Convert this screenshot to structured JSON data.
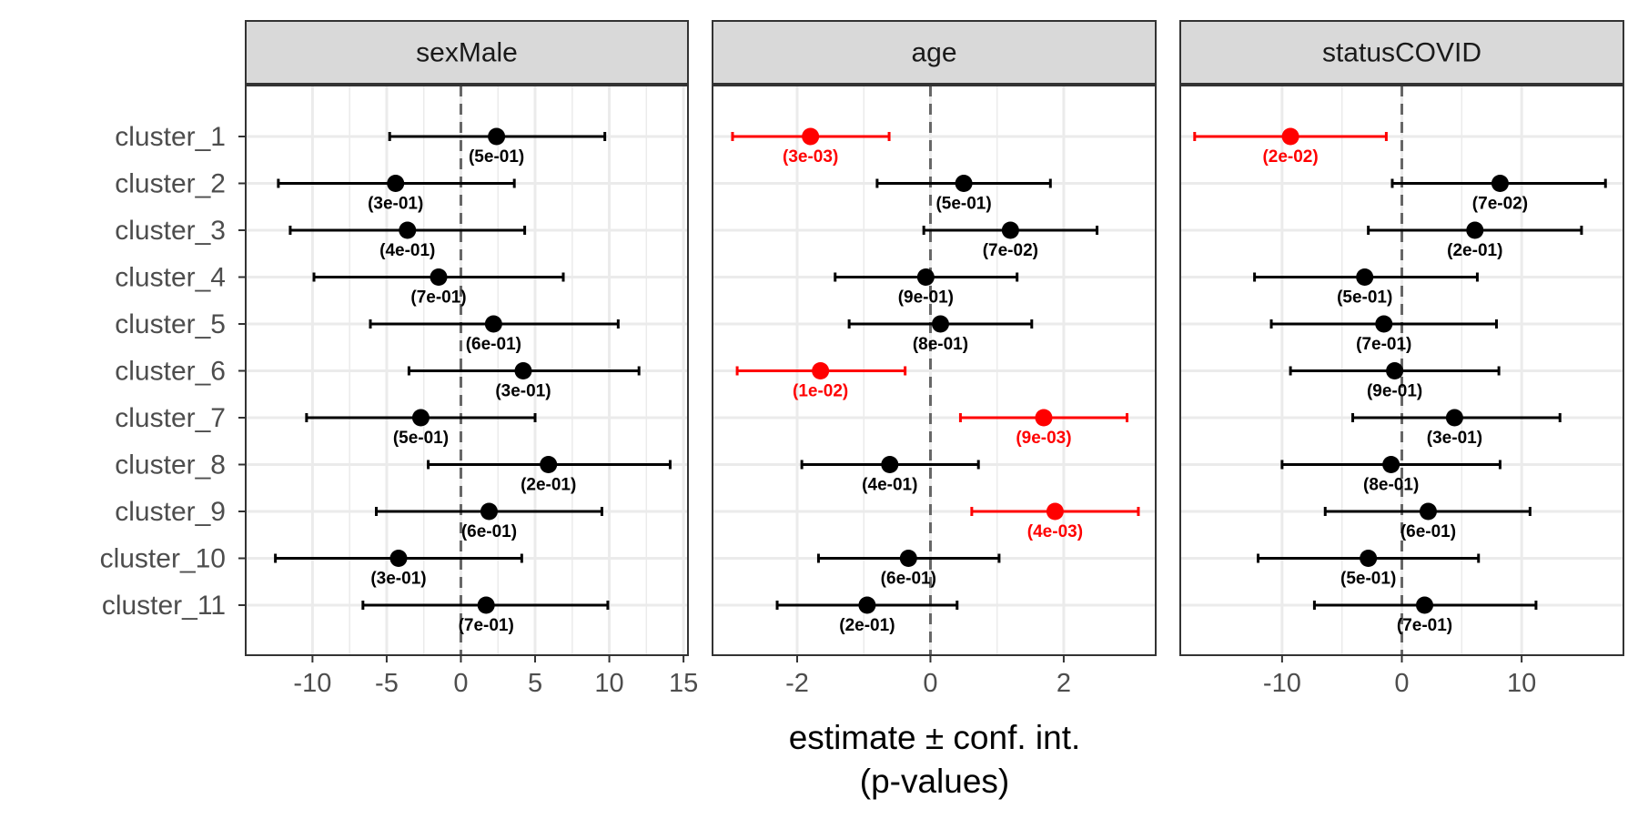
{
  "chart_data": {
    "type": "forest",
    "xlabel_line1": "estimate ± conf. int.",
    "xlabel_line2": "(p-values)",
    "ylabel": "",
    "categories": [
      "cluster_1",
      "cluster_2",
      "cluster_3",
      "cluster_4",
      "cluster_5",
      "cluster_6",
      "cluster_7",
      "cluster_8",
      "cluster_9",
      "cluster_10",
      "cluster_11"
    ],
    "colors": {
      "significant": "#ff0000",
      "default": "#000000",
      "strip_fill": "#d9d9d9",
      "grid": "#ebebeb",
      "zero_line": "#666666"
    },
    "grid": true,
    "panels": [
      {
        "name": "sexMale",
        "xlim": [
          -14.5,
          15.3
        ],
        "ticks": [
          -10,
          -5,
          0,
          5,
          10,
          15
        ],
        "tick_labels": [
          "-10",
          "-5",
          "0",
          "5",
          "10",
          "15"
        ],
        "points": [
          {
            "estimate": 2.4,
            "low": -4.8,
            "high": 9.7,
            "p": "(5e-01)",
            "significant": false
          },
          {
            "estimate": -4.4,
            "low": -12.3,
            "high": 3.6,
            "p": "(3e-01)",
            "significant": false
          },
          {
            "estimate": -3.6,
            "low": -11.5,
            "high": 4.3,
            "p": "(4e-01)",
            "significant": false
          },
          {
            "estimate": -1.5,
            "low": -9.9,
            "high": 6.9,
            "p": "(7e-01)",
            "significant": false
          },
          {
            "estimate": 2.2,
            "low": -6.1,
            "high": 10.6,
            "p": "(6e-01)",
            "significant": false
          },
          {
            "estimate": 4.2,
            "low": -3.5,
            "high": 12.0,
            "p": "(3e-01)",
            "significant": false
          },
          {
            "estimate": -2.7,
            "low": -10.4,
            "high": 5.0,
            "p": "(5e-01)",
            "significant": false
          },
          {
            "estimate": 5.9,
            "low": -2.2,
            "high": 14.1,
            "p": "(2e-01)",
            "significant": false
          },
          {
            "estimate": 1.9,
            "low": -5.7,
            "high": 9.5,
            "p": "(6e-01)",
            "significant": false
          },
          {
            "estimate": -4.2,
            "low": -12.5,
            "high": 4.1,
            "p": "(3e-01)",
            "significant": false
          },
          {
            "estimate": 1.7,
            "low": -6.6,
            "high": 9.9,
            "p": "(7e-01)",
            "significant": false
          }
        ]
      },
      {
        "name": "age",
        "xlim": [
          -3.27,
          3.38
        ],
        "ticks": [
          -2,
          0,
          2
        ],
        "tick_labels": [
          "-2",
          "0",
          "2"
        ],
        "points": [
          {
            "estimate": -1.8,
            "low": -2.97,
            "high": -0.62,
            "p": "(3e-03)",
            "significant": true
          },
          {
            "estimate": 0.5,
            "low": -0.8,
            "high": 1.8,
            "p": "(5e-01)",
            "significant": false
          },
          {
            "estimate": 1.2,
            "low": -0.1,
            "high": 2.5,
            "p": "(7e-02)",
            "significant": false
          },
          {
            "estimate": -0.07,
            "low": -1.43,
            "high": 1.3,
            "p": "(9e-01)",
            "significant": false
          },
          {
            "estimate": 0.15,
            "low": -1.22,
            "high": 1.52,
            "p": "(8e-01)",
            "significant": false
          },
          {
            "estimate": -1.65,
            "low": -2.9,
            "high": -0.38,
            "p": "(1e-02)",
            "significant": true
          },
          {
            "estimate": 1.7,
            "low": 0.45,
            "high": 2.95,
            "p": "(9e-03)",
            "significant": true
          },
          {
            "estimate": -0.61,
            "low": -1.93,
            "high": 0.72,
            "p": "(4e-01)",
            "significant": false
          },
          {
            "estimate": 1.87,
            "low": 0.62,
            "high": 3.12,
            "p": "(4e-03)",
            "significant": true
          },
          {
            "estimate": -0.33,
            "low": -1.68,
            "high": 1.03,
            "p": "(6e-01)",
            "significant": false
          },
          {
            "estimate": -0.95,
            "low": -2.3,
            "high": 0.4,
            "p": "(2e-01)",
            "significant": false
          }
        ]
      },
      {
        "name": "statusCOVID",
        "xlim": [
          -18.5,
          18.5
        ],
        "ticks": [
          -10,
          0,
          10
        ],
        "tick_labels": [
          "-10",
          "0",
          "10"
        ],
        "points": [
          {
            "estimate": -9.3,
            "low": -17.3,
            "high": -1.3,
            "p": "(2e-02)",
            "significant": true
          },
          {
            "estimate": 8.2,
            "low": -0.8,
            "high": 17.0,
            "p": "(7e-02)",
            "significant": false
          },
          {
            "estimate": 6.1,
            "low": -2.8,
            "high": 15.0,
            "p": "(2e-01)",
            "significant": false
          },
          {
            "estimate": -3.1,
            "low": -12.3,
            "high": 6.3,
            "p": "(5e-01)",
            "significant": false
          },
          {
            "estimate": -1.5,
            "low": -10.9,
            "high": 7.9,
            "p": "(7e-01)",
            "significant": false
          },
          {
            "estimate": -0.6,
            "low": -9.3,
            "high": 8.1,
            "p": "(9e-01)",
            "significant": false
          },
          {
            "estimate": 4.4,
            "low": -4.1,
            "high": 13.2,
            "p": "(3e-01)",
            "significant": false
          },
          {
            "estimate": -0.9,
            "low": -10.0,
            "high": 8.2,
            "p": "(8e-01)",
            "significant": false
          },
          {
            "estimate": 2.2,
            "low": -6.4,
            "high": 10.7,
            "p": "(6e-01)",
            "significant": false
          },
          {
            "estimate": -2.8,
            "low": -12.0,
            "high": 6.4,
            "p": "(5e-01)",
            "significant": false
          },
          {
            "estimate": 1.9,
            "low": -7.3,
            "high": 11.2,
            "p": "(7e-01)",
            "significant": false
          }
        ]
      }
    ]
  }
}
